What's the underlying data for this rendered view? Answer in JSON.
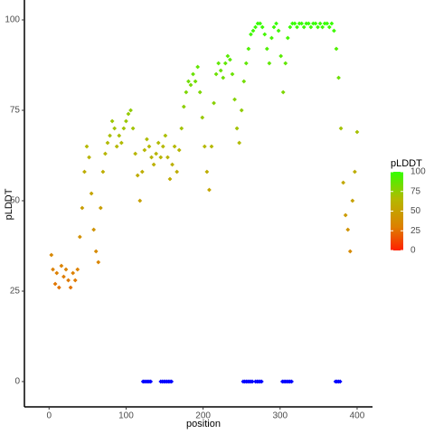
{
  "chart_data": {
    "type": "scatter",
    "xlabel": "position",
    "ylabel": "pLDDT",
    "xlim": [
      -32,
      420
    ],
    "ylim": [
      -7,
      105.5
    ],
    "xticks": [
      0,
      100,
      200,
      300,
      400
    ],
    "yticks": [
      0,
      25,
      50,
      75,
      100
    ],
    "series": [
      {
        "x": [
          3,
          5,
          8,
          10,
          13,
          16,
          19,
          22,
          25,
          28,
          31,
          34,
          37,
          40,
          43,
          46,
          49,
          52,
          55,
          58,
          61,
          64,
          67,
          70,
          73,
          76,
          79,
          82,
          85,
          88,
          91,
          94,
          97,
          100,
          103,
          106,
          109,
          112,
          115,
          118,
          121,
          124,
          127,
          130,
          133,
          136,
          139,
          142,
          145,
          148,
          151,
          154,
          157,
          160,
          163,
          166,
          169,
          172,
          175,
          178,
          181,
          184,
          187,
          190,
          193,
          196,
          199,
          202,
          205,
          208,
          211,
          214,
          217,
          220,
          223,
          226,
          229,
          232,
          235,
          238,
          241,
          244,
          247,
          250,
          253,
          256,
          259,
          262,
          265,
          268,
          271,
          274,
          277,
          280,
          283,
          286,
          289,
          292,
          295,
          298,
          301,
          304,
          307,
          310,
          313,
          316,
          319,
          322,
          325,
          328,
          331,
          334,
          337,
          340,
          343,
          346,
          349,
          352,
          355,
          358,
          361,
          364,
          367,
          370,
          373,
          376,
          379,
          382,
          385,
          388,
          391,
          394,
          397,
          400
        ],
        "values": [
          35,
          31,
          27,
          30,
          26,
          32,
          29,
          31,
          28,
          26,
          30,
          28,
          31,
          40,
          48,
          58,
          65,
          62,
          52,
          42,
          36,
          33,
          48,
          58,
          63,
          66,
          68,
          72,
          70,
          65,
          68,
          66,
          70,
          72,
          74,
          75,
          70,
          63,
          57,
          50,
          58,
          64,
          67,
          65,
          62,
          60,
          63,
          66,
          62,
          65,
          68,
          62,
          56,
          60,
          65,
          58,
          64,
          70,
          76,
          80,
          83,
          82,
          85,
          83,
          87,
          80,
          73,
          65,
          58,
          53,
          65,
          77,
          85,
          88,
          86,
          84,
          88,
          90,
          89,
          85,
          78,
          70,
          66,
          75,
          83,
          88,
          92,
          96,
          97,
          98,
          99,
          99,
          98,
          96,
          92,
          88,
          95,
          98,
          99,
          97,
          90,
          80,
          88,
          95,
          98,
          99,
          99,
          98,
          99,
          99,
          98,
          99,
          99,
          98,
          99,
          99,
          98,
          99,
          98,
          99,
          99,
          98,
          99,
          97,
          92,
          84,
          70,
          55,
          46,
          42,
          36,
          50,
          58,
          69
        ],
        "colorscale": [
          [
            0,
            "#ff2000"
          ],
          [
            30,
            "#dd8000"
          ],
          [
            65,
            "#b5b800"
          ],
          [
            100,
            "#33ff00"
          ]
        ]
      },
      {
        "x": [
          122,
          124,
          126,
          128,
          130,
          132,
          145,
          147,
          149,
          151,
          153,
          155,
          157,
          159,
          252,
          254,
          256,
          258,
          260,
          262,
          264,
          268,
          270,
          272,
          274,
          276,
          303,
          305,
          307,
          309,
          311,
          313,
          315,
          372,
          374,
          376,
          378
        ],
        "values": [
          0,
          0,
          0,
          0,
          0,
          0,
          0,
          0,
          0,
          0,
          0,
          0,
          0,
          0,
          0,
          0,
          0,
          0,
          0,
          0,
          0,
          0,
          0,
          0,
          0,
          0,
          0,
          0,
          0,
          0,
          0,
          0,
          0,
          0,
          0,
          0,
          0
        ],
        "color": "#0000ff"
      }
    ],
    "colorbar": {
      "title": "pLDDT",
      "ticks": [
        0,
        25,
        50,
        75,
        100
      ]
    }
  }
}
